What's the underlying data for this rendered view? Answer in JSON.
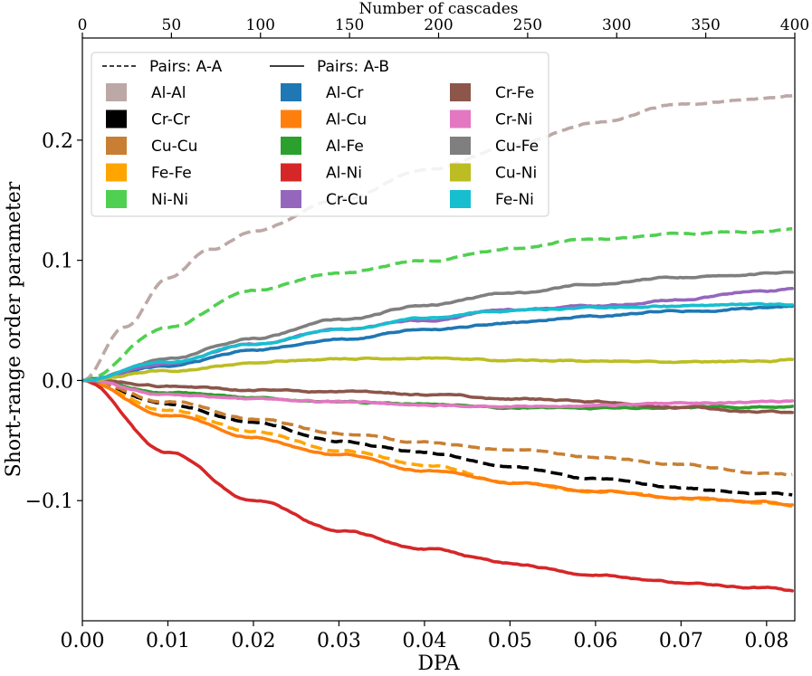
{
  "chart_data": {
    "type": "line",
    "title": "",
    "xlabel": "DPA",
    "ylabel": "Short-range order parameter",
    "x2label": "Number of cascades",
    "xlim": [
      0,
      0.0833
    ],
    "ylim": [
      -0.2,
      0.285
    ],
    "x2lim": [
      0,
      400
    ],
    "xticks": [
      0,
      0.01,
      0.02,
      0.03,
      0.04,
      0.05,
      0.06,
      0.07,
      0.08
    ],
    "xtick_labels": [
      "0.00",
      "0.01",
      "0.02",
      "0.03",
      "0.04",
      "0.05",
      "0.06",
      "0.07",
      "0.08"
    ],
    "yticks": [
      -0.1,
      0.0,
      0.1,
      0.2
    ],
    "ytick_labels": [
      "−0.1",
      "0.0",
      "0.1",
      "0.2"
    ],
    "x2ticks": [
      0,
      50,
      100,
      150,
      200,
      250,
      300,
      350,
      400
    ],
    "x2tick_labels": [
      "0",
      "50",
      "100",
      "150",
      "200",
      "250",
      "300",
      "350",
      "400"
    ],
    "grid": false,
    "legend_position": "top-left",
    "legend_headers": [
      {
        "label": "Pairs: A-A",
        "style": "dashed"
      },
      {
        "label": "Pairs: A-B",
        "style": "solid"
      }
    ],
    "series": [
      {
        "name": "Al-Al",
        "color": "#bca8a6",
        "style": "dashed",
        "x": [
          0,
          0.005,
          0.01,
          0.015,
          0.02,
          0.03,
          0.04,
          0.05,
          0.06,
          0.07,
          0.08,
          0.083
        ],
        "values": [
          0,
          0.045,
          0.085,
          0.11,
          0.125,
          0.15,
          0.175,
          0.195,
          0.215,
          0.23,
          0.235,
          0.237
        ]
      },
      {
        "name": "Cr-Cr",
        "color": "#000000",
        "style": "dashed",
        "x": [
          0,
          0.01,
          0.02,
          0.03,
          0.04,
          0.05,
          0.06,
          0.07,
          0.08,
          0.083
        ],
        "values": [
          0,
          -0.02,
          -0.035,
          -0.05,
          -0.06,
          -0.072,
          -0.082,
          -0.09,
          -0.094,
          -0.095
        ]
      },
      {
        "name": "Cu-Cu",
        "color": "#c87f33",
        "style": "dashed",
        "x": [
          0,
          0.01,
          0.02,
          0.03,
          0.04,
          0.05,
          0.06,
          0.07,
          0.08,
          0.083
        ],
        "values": [
          0,
          -0.018,
          -0.032,
          -0.045,
          -0.052,
          -0.058,
          -0.064,
          -0.07,
          -0.077,
          -0.078
        ]
      },
      {
        "name": "Fe-Fe",
        "color": "#ffa500",
        "style": "dashed",
        "x": [
          0,
          0.01,
          0.02,
          0.03,
          0.04,
          0.05,
          0.06,
          0.07,
          0.08,
          0.083
        ],
        "values": [
          0,
          -0.025,
          -0.042,
          -0.058,
          -0.07,
          -0.085,
          -0.093,
          -0.098,
          -0.102,
          -0.104
        ]
      },
      {
        "name": "Ni-Ni",
        "color": "#50d050",
        "style": "dashed",
        "x": [
          0,
          0.01,
          0.02,
          0.03,
          0.04,
          0.05,
          0.06,
          0.07,
          0.08,
          0.083
        ],
        "values": [
          0,
          0.045,
          0.075,
          0.09,
          0.1,
          0.11,
          0.118,
          0.122,
          0.124,
          0.126
        ]
      },
      {
        "name": "Al-Cr",
        "color": "#1f77b4",
        "style": "solid",
        "x": [
          0,
          0.01,
          0.02,
          0.03,
          0.04,
          0.05,
          0.06,
          0.07,
          0.08,
          0.083
        ],
        "values": [
          0,
          0.012,
          0.025,
          0.035,
          0.042,
          0.048,
          0.054,
          0.058,
          0.061,
          0.062
        ]
      },
      {
        "name": "Al-Cu",
        "color": "#ff7f0e",
        "style": "solid",
        "x": [
          0,
          0.01,
          0.02,
          0.03,
          0.04,
          0.05,
          0.06,
          0.07,
          0.08,
          0.083
        ],
        "values": [
          0,
          -0.028,
          -0.047,
          -0.062,
          -0.075,
          -0.085,
          -0.092,
          -0.097,
          -0.102,
          -0.104
        ]
      },
      {
        "name": "Al-Fe",
        "color": "#2ca02c",
        "style": "solid",
        "x": [
          0,
          0.01,
          0.02,
          0.03,
          0.04,
          0.05,
          0.06,
          0.07,
          0.08,
          0.083
        ],
        "values": [
          0,
          -0.01,
          -0.015,
          -0.018,
          -0.02,
          -0.022,
          -0.023,
          -0.023,
          -0.022,
          -0.021
        ]
      },
      {
        "name": "Al-Ni",
        "color": "#d62728",
        "style": "solid",
        "x": [
          0,
          0.01,
          0.02,
          0.03,
          0.04,
          0.05,
          0.06,
          0.07,
          0.08,
          0.083
        ],
        "values": [
          0,
          -0.06,
          -0.1,
          -0.125,
          -0.14,
          -0.152,
          -0.162,
          -0.168,
          -0.172,
          -0.175
        ]
      },
      {
        "name": "Cr-Cu",
        "color": "#9467bd",
        "style": "solid",
        "x": [
          0,
          0.01,
          0.02,
          0.03,
          0.04,
          0.05,
          0.06,
          0.07,
          0.08,
          0.083
        ],
        "values": [
          0,
          0.015,
          0.03,
          0.042,
          0.05,
          0.058,
          0.062,
          0.068,
          0.075,
          0.077
        ]
      },
      {
        "name": "Cr-Fe",
        "color": "#8c564b",
        "style": "solid",
        "x": [
          0,
          0.01,
          0.02,
          0.03,
          0.04,
          0.05,
          0.06,
          0.07,
          0.08,
          0.083
        ],
        "values": [
          0,
          -0.005,
          -0.008,
          -0.01,
          -0.012,
          -0.015,
          -0.018,
          -0.022,
          -0.026,
          -0.027
        ]
      },
      {
        "name": "Cr-Ni",
        "color": "#e377c2",
        "style": "solid",
        "x": [
          0,
          0.01,
          0.02,
          0.03,
          0.04,
          0.05,
          0.06,
          0.07,
          0.08,
          0.083
        ],
        "values": [
          0,
          -0.012,
          -0.016,
          -0.018,
          -0.02,
          -0.021,
          -0.02,
          -0.019,
          -0.018,
          -0.018
        ]
      },
      {
        "name": "Cu-Fe",
        "color": "#7f7f7f",
        "style": "solid",
        "x": [
          0,
          0.01,
          0.02,
          0.03,
          0.04,
          0.05,
          0.06,
          0.07,
          0.08,
          0.083
        ],
        "values": [
          0,
          0.018,
          0.035,
          0.05,
          0.062,
          0.072,
          0.08,
          0.086,
          0.09,
          0.091
        ]
      },
      {
        "name": "Cu-Ni",
        "color": "#bcbd22",
        "style": "solid",
        "x": [
          0,
          0.01,
          0.02,
          0.03,
          0.04,
          0.05,
          0.06,
          0.07,
          0.08,
          0.083
        ],
        "values": [
          0,
          0.008,
          0.014,
          0.018,
          0.019,
          0.017,
          0.016,
          0.015,
          0.016,
          0.017
        ]
      },
      {
        "name": "Fe-Ni",
        "color": "#17becf",
        "style": "solid",
        "x": [
          0,
          0.01,
          0.02,
          0.03,
          0.04,
          0.05,
          0.06,
          0.07,
          0.08,
          0.083
        ],
        "values": [
          0,
          0.015,
          0.03,
          0.042,
          0.052,
          0.058,
          0.061,
          0.062,
          0.063,
          0.063
        ]
      }
    ]
  }
}
